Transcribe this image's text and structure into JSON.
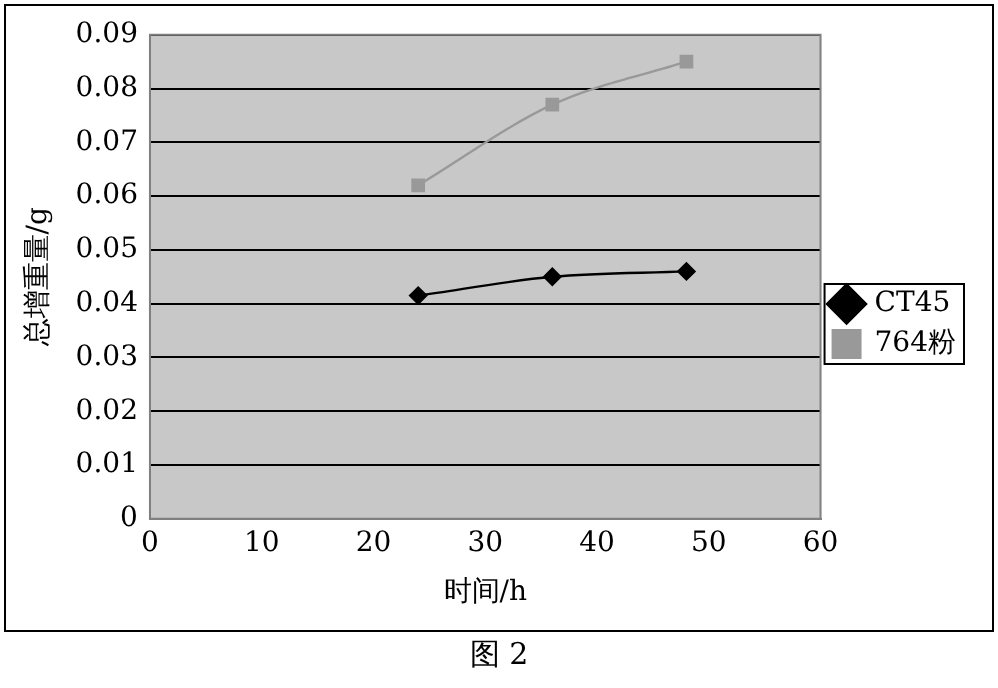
{
  "chart_data": {
    "type": "line",
    "xlabel": "时间/h",
    "ylabel": "总增重量/g",
    "xlim": [
      0,
      60
    ],
    "xticks": [
      0,
      10,
      20,
      30,
      40,
      50,
      60
    ],
    "ylim": [
      0,
      0.09
    ],
    "yticks": [
      0,
      0.01,
      0.02,
      0.03,
      0.04,
      0.05,
      0.06,
      0.07,
      0.08,
      0.09
    ],
    "grid": "y",
    "legend": "right",
    "line_style": "solid",
    "series": [
      {
        "name": "CT45",
        "color": "#000000",
        "marker": "diamond",
        "x": [
          24,
          36,
          48
        ],
        "values": [
          0.0415,
          0.045,
          0.046
        ]
      },
      {
        "name": "764粉",
        "color": "#999999",
        "marker": "square",
        "x": [
          24,
          36,
          48
        ],
        "values": [
          0.062,
          0.077,
          0.085
        ]
      }
    ],
    "annotations": [
      "图 2"
    ]
  }
}
